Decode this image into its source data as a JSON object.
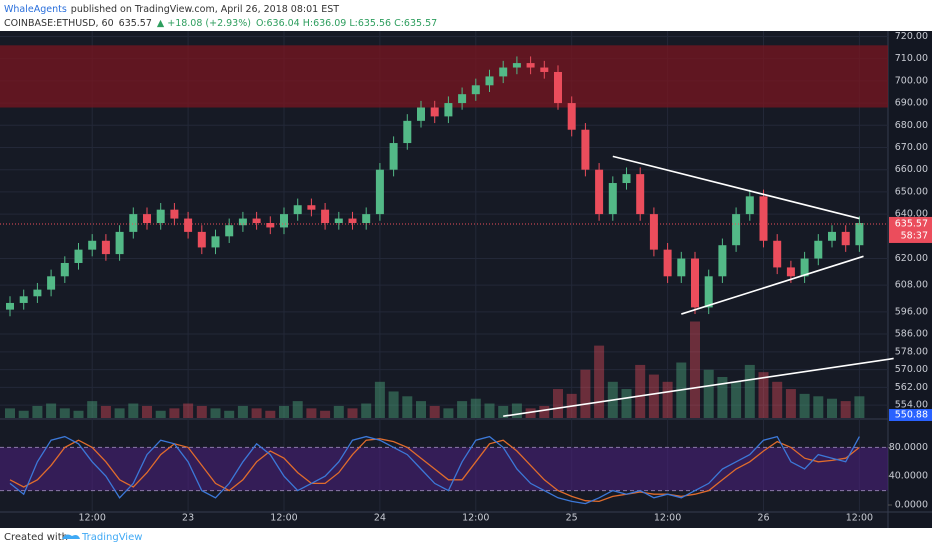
{
  "chart_data": {
    "type": "candlestick",
    "header": {
      "publisher": "WhaleAgents",
      "published": "published on TradingView.com, April 26, 2018 08:01 EST",
      "symbol": "COINBASE:ETHUSD, 60",
      "price": "635.57",
      "change": "▲ +18.08 (+2.93%)",
      "ohlc": "O:636.04 H:636.09 L:635.56 C:635.57"
    },
    "categories": [
      null,
      null,
      null,
      null,
      null,
      null,
      "12:00",
      null,
      null,
      null,
      null,
      null,
      null,
      "23",
      null,
      null,
      null,
      null,
      null,
      null,
      "12:00",
      null,
      null,
      null,
      null,
      null,
      null,
      "24",
      null,
      null,
      null,
      null,
      null,
      null,
      "12:00",
      null,
      null,
      null,
      null,
      null,
      null,
      "25",
      null,
      null,
      null,
      null,
      null,
      null,
      "12:00",
      null,
      null,
      null,
      null,
      null,
      null,
      "26",
      null,
      null,
      null,
      null,
      null,
      null,
      "12:00"
    ],
    "open": [
      597,
      600,
      603,
      606,
      612,
      618,
      624,
      628,
      622,
      632,
      640,
      636,
      642,
      638,
      632,
      625,
      630,
      635,
      638,
      636,
      634,
      640,
      644,
      642,
      636,
      638,
      636,
      640,
      660,
      672,
      682,
      688,
      684,
      690,
      694,
      698,
      702,
      706,
      708,
      706,
      704,
      690,
      678,
      660,
      640,
      654,
      658,
      640,
      624,
      612,
      620,
      598,
      612,
      626,
      640,
      648,
      628,
      616,
      612,
      620,
      628,
      632,
      626
    ],
    "high": [
      603,
      606,
      609,
      615,
      621,
      627,
      631,
      631,
      635,
      643,
      643,
      645,
      645,
      641,
      635,
      633,
      638,
      641,
      641,
      639,
      643,
      647,
      647,
      645,
      641,
      641,
      643,
      663,
      675,
      685,
      691,
      691,
      693,
      697,
      701,
      705,
      709,
      711,
      711,
      709,
      707,
      693,
      681,
      663,
      657,
      661,
      661,
      643,
      627,
      623,
      623,
      615,
      629,
      643,
      651,
      651,
      631,
      619,
      623,
      631,
      635,
      635,
      639
    ],
    "low": [
      594,
      597,
      600,
      603,
      609,
      615,
      621,
      619,
      619,
      629,
      633,
      633,
      635,
      629,
      622,
      622,
      627,
      632,
      633,
      631,
      631,
      637,
      639,
      633,
      633,
      633,
      633,
      637,
      657,
      669,
      679,
      681,
      681,
      687,
      691,
      695,
      699,
      703,
      703,
      701,
      687,
      675,
      657,
      637,
      637,
      651,
      637,
      621,
      609,
      609,
      595,
      595,
      609,
      623,
      637,
      625,
      613,
      609,
      609,
      617,
      625,
      623,
      623
    ],
    "close": [
      600,
      603,
      606,
      612,
      618,
      624,
      628,
      622,
      632,
      640,
      636,
      642,
      638,
      632,
      625,
      630,
      635,
      638,
      636,
      634,
      640,
      644,
      642,
      636,
      638,
      636,
      640,
      660,
      672,
      682,
      688,
      684,
      690,
      694,
      698,
      702,
      706,
      708,
      706,
      704,
      690,
      678,
      660,
      640,
      654,
      658,
      640,
      624,
      612,
      620,
      598,
      612,
      626,
      640,
      648,
      628,
      616,
      612,
      620,
      628,
      632,
      626,
      636
    ],
    "volume": [
      8,
      6,
      10,
      12,
      8,
      6,
      14,
      10,
      8,
      12,
      10,
      6,
      8,
      12,
      10,
      8,
      6,
      10,
      8,
      6,
      10,
      14,
      8,
      6,
      10,
      8,
      12,
      30,
      22,
      18,
      14,
      10,
      8,
      14,
      16,
      12,
      10,
      12,
      8,
      10,
      24,
      20,
      40,
      60,
      30,
      24,
      44,
      36,
      30,
      46,
      80,
      40,
      34,
      30,
      44,
      38,
      30,
      24,
      20,
      18,
      16,
      14,
      18
    ],
    "vlim": [
      0,
      320
    ],
    "ylim": [
      550,
      722
    ],
    "yticks": [
      {
        "value": 720,
        "label": "720.00"
      },
      {
        "value": 710,
        "label": "710.00"
      },
      {
        "value": 700,
        "label": "700.00"
      },
      {
        "value": 690,
        "label": "690.00"
      },
      {
        "value": 680,
        "label": "680.00"
      },
      {
        "value": 670,
        "label": "670.00"
      },
      {
        "value": 660,
        "label": "660.00"
      },
      {
        "value": 650,
        "label": "650.00"
      },
      {
        "value": 640,
        "label": "640.00"
      },
      {
        "value": 620,
        "label": "620.00"
      },
      {
        "value": 608,
        "label": "608.00"
      },
      {
        "value": 596,
        "label": "596.00"
      },
      {
        "value": 586,
        "label": "586.00"
      },
      {
        "value": 578,
        "label": "578.00"
      },
      {
        "value": 570,
        "label": "570.00"
      },
      {
        "value": 562,
        "label": "562.00"
      },
      {
        "value": 554,
        "label": "554.00"
      }
    ],
    "grid": true,
    "up_color": "#53b987",
    "down_color": "#eb4d5c",
    "zone": [
      688,
      716
    ],
    "zone_color": "#7a1620",
    "last_price": 635.57,
    "countdown": "58:37",
    "axis_badge": "550.88",
    "trendlines": [
      {
        "x": [
          44,
          62
        ],
        "y": [
          666,
          638
        ]
      },
      {
        "x": [
          49,
          62.3
        ],
        "y": [
          595,
          621
        ]
      },
      {
        "x": [
          36,
          64.5
        ],
        "y": [
          549,
          575
        ]
      }
    ],
    "stoch": {
      "k": [
        30,
        15,
        60,
        90,
        95,
        85,
        60,
        40,
        10,
        30,
        70,
        90,
        85,
        60,
        20,
        10,
        30,
        60,
        85,
        70,
        40,
        20,
        30,
        40,
        60,
        90,
        95,
        90,
        80,
        70,
        50,
        30,
        20,
        60,
        90,
        95,
        80,
        50,
        30,
        20,
        10,
        5,
        2,
        10,
        20,
        15,
        20,
        10,
        15,
        10,
        20,
        30,
        50,
        60,
        70,
        90,
        95,
        60,
        50,
        70,
        65,
        60,
        95
      ],
      "d": [
        35,
        25,
        35,
        55,
        80,
        90,
        80,
        60,
        35,
        25,
        45,
        70,
        85,
        80,
        55,
        30,
        20,
        35,
        60,
        75,
        65,
        45,
        30,
        30,
        45,
        70,
        90,
        92,
        88,
        80,
        65,
        50,
        35,
        35,
        60,
        85,
        90,
        75,
        55,
        35,
        20,
        12,
        6,
        5,
        12,
        15,
        18,
        15,
        15,
        12,
        15,
        20,
        35,
        50,
        60,
        75,
        88,
        80,
        65,
        60,
        62,
        65,
        80
      ],
      "k_color": "#3c78d8",
      "d_color": "#e06c2c",
      "ylim": [
        0,
        100
      ],
      "yticks": [
        {
          "value": 0,
          "label": "0.0000"
        },
        {
          "value": 40,
          "label": "40.0000"
        },
        {
          "value": 80,
          "label": "80.0000"
        }
      ],
      "band": [
        20,
        80
      ]
    },
    "footer": {
      "created": "Created with",
      "brand": "TradingView"
    }
  }
}
